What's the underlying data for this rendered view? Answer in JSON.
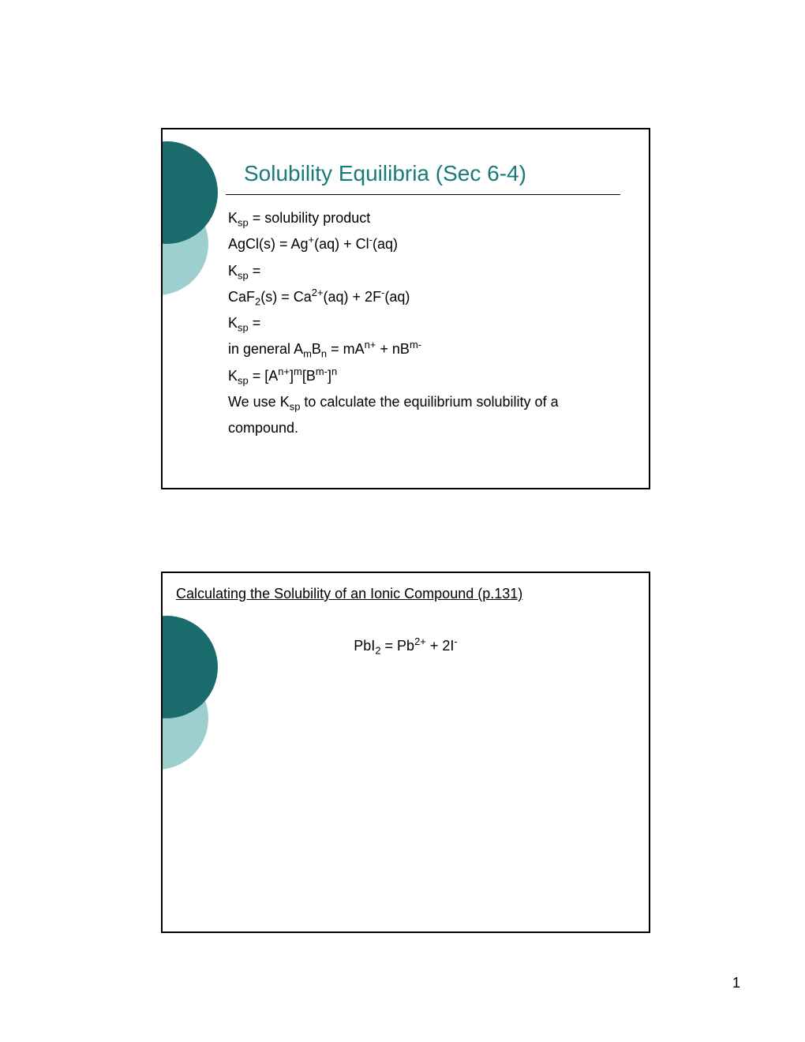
{
  "page_number": "1",
  "colors": {
    "circle_dark": "#1a6b6b",
    "circle_light": "#9ecfcf",
    "title_color": "#1a7a7a",
    "text_color": "#000000",
    "background": "#ffffff",
    "border": "#000000"
  },
  "typography": {
    "title_fontsize": 28,
    "body_fontsize": 18,
    "title_font": "Arial",
    "body_font": "Verdana"
  },
  "slide1": {
    "title": "Solubility Equilibria (Sec 6-4)",
    "lines": {
      "l1_pre": "K",
      "l1_sub": "sp",
      "l1_post": " = solubility product",
      "l2_a": "AgCl(s) = Ag",
      "l2_sup1": "+",
      "l2_b": "(aq)  +  Cl",
      "l2_sup2": "-",
      "l2_c": "(aq)",
      "l3_pre": "K",
      "l3_sub": "sp",
      "l3_post": " =",
      "l4_a": "CaF",
      "l4_sub1": "2",
      "l4_b": "(s) = Ca",
      "l4_sup1": "2+",
      "l4_c": "(aq)  +  2F",
      "l4_sup2": "-",
      "l4_d": "(aq)",
      "l5_pre": "K",
      "l5_sub": "sp",
      "l5_post": " =",
      "l6_a": "in general A",
      "l6_sub1": "m",
      "l6_b": "B",
      "l6_sub2": "n",
      "l6_c": " = mA",
      "l6_sup1": "n+",
      "l6_d": "  +  nB",
      "l6_sup2": "m-",
      "l7_a": "K",
      "l7_sub1": "sp",
      "l7_b": " = [A",
      "l7_sup1": "n+",
      "l7_c": "]",
      "l7_sup2": "m",
      "l7_d": "[B",
      "l7_sup3": "m-",
      "l7_e": "]",
      "l7_sup4": "n",
      "l8_a": "We use K",
      "l8_sub": "sp",
      "l8_b": " to calculate the equilibrium solubility of a compound."
    }
  },
  "slide2": {
    "heading": "Calculating the Solubility of an Ionic Compound (p.131)",
    "eq_a": "PbI",
    "eq_sub": "2",
    "eq_b": " = Pb",
    "eq_sup1": "2+",
    "eq_c": "  +  2I",
    "eq_sup2": "-"
  }
}
